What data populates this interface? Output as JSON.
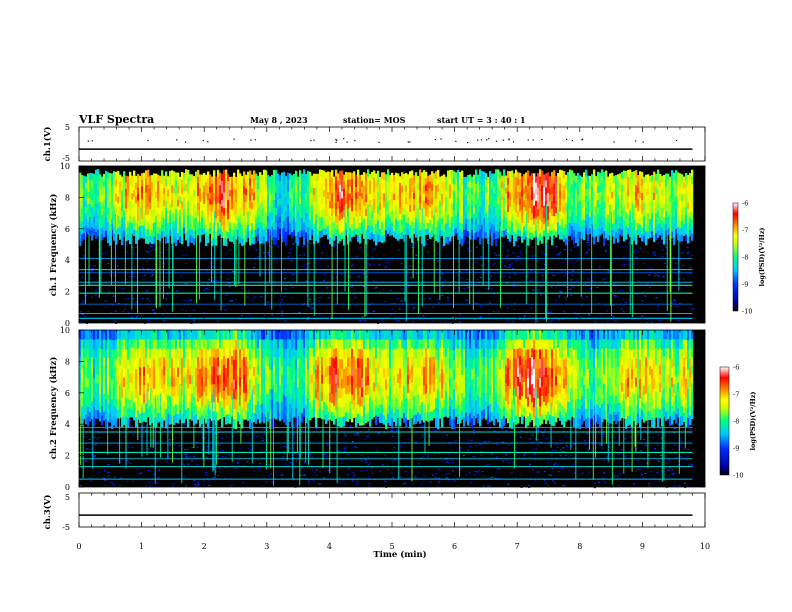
{
  "header": {
    "title": "VLF Spectra",
    "date": "May 8 , 2023",
    "station": "station= MOS",
    "start": "start UT = 3 : 40 : 1"
  },
  "chart_data": [
    {
      "type": "line",
      "panel": "ch1-voltage",
      "ylabel": "ch.1(V)",
      "ylim": [
        -5,
        5
      ],
      "yticks": [
        "5",
        "-5"
      ],
      "xlim": [
        0,
        10
      ],
      "series": [
        {
          "x": [
            0,
            9.8
          ],
          "values": [
            -1.5,
            -1.5
          ]
        }
      ]
    },
    {
      "type": "heatmap",
      "panel": "ch1-spectrogram",
      "ylabel": "ch.1 Frequency (kHz)",
      "ylim": [
        0,
        10
      ],
      "yticks": [
        "0",
        "2",
        "4",
        "6",
        "8",
        "10"
      ],
      "xlim": [
        0,
        10
      ],
      "data_xmax": 9.8,
      "band_khz": [
        5.7,
        9.3
      ],
      "band_peak_khz": 8.3,
      "colorbar": {
        "label": "log(PSD)(V²/Hz)",
        "range": [
          -10,
          -6
        ],
        "ticks": [
          "-6",
          "-7",
          "-8",
          "-9",
          "-10"
        ]
      }
    },
    {
      "type": "heatmap",
      "panel": "ch2-spectrogram",
      "ylabel": "ch.2 Frequency (kHz)",
      "ylim": [
        0,
        10
      ],
      "yticks": [
        "0",
        "2",
        "4",
        "6",
        "8",
        "10"
      ],
      "xlim": [
        0,
        10
      ],
      "data_xmax": 9.8,
      "band_khz": [
        4.5,
        10
      ],
      "band_peak_khz": 7.0,
      "colorbar": {
        "label": "log(PSD)(V²/Hz)",
        "range": [
          -10,
          -6
        ],
        "ticks": [
          "-6",
          "-7",
          "-8",
          "-9",
          "-10"
        ]
      }
    },
    {
      "type": "line",
      "panel": "ch3-voltage",
      "ylabel": "ch.3(V)",
      "ylim": [
        -5,
        5
      ],
      "yticks": [
        "5",
        "-5"
      ],
      "xlim": [
        0,
        10
      ],
      "series": [
        {
          "x": [
            0,
            9.8
          ],
          "values": [
            -1.5,
            -1.5
          ]
        }
      ]
    }
  ],
  "xaxis": {
    "label": "Time  (min)",
    "ticks": [
      "0",
      "1",
      "2",
      "3",
      "4",
      "5",
      "6",
      "7",
      "8",
      "9",
      "10"
    ]
  },
  "colors": {
    "background": "#000000",
    "colormap": [
      "#00007a",
      "#0000ff",
      "#00c8ff",
      "#00ff80",
      "#ffff00",
      "#ff8000",
      "#ff0000",
      "#ffffff"
    ]
  }
}
